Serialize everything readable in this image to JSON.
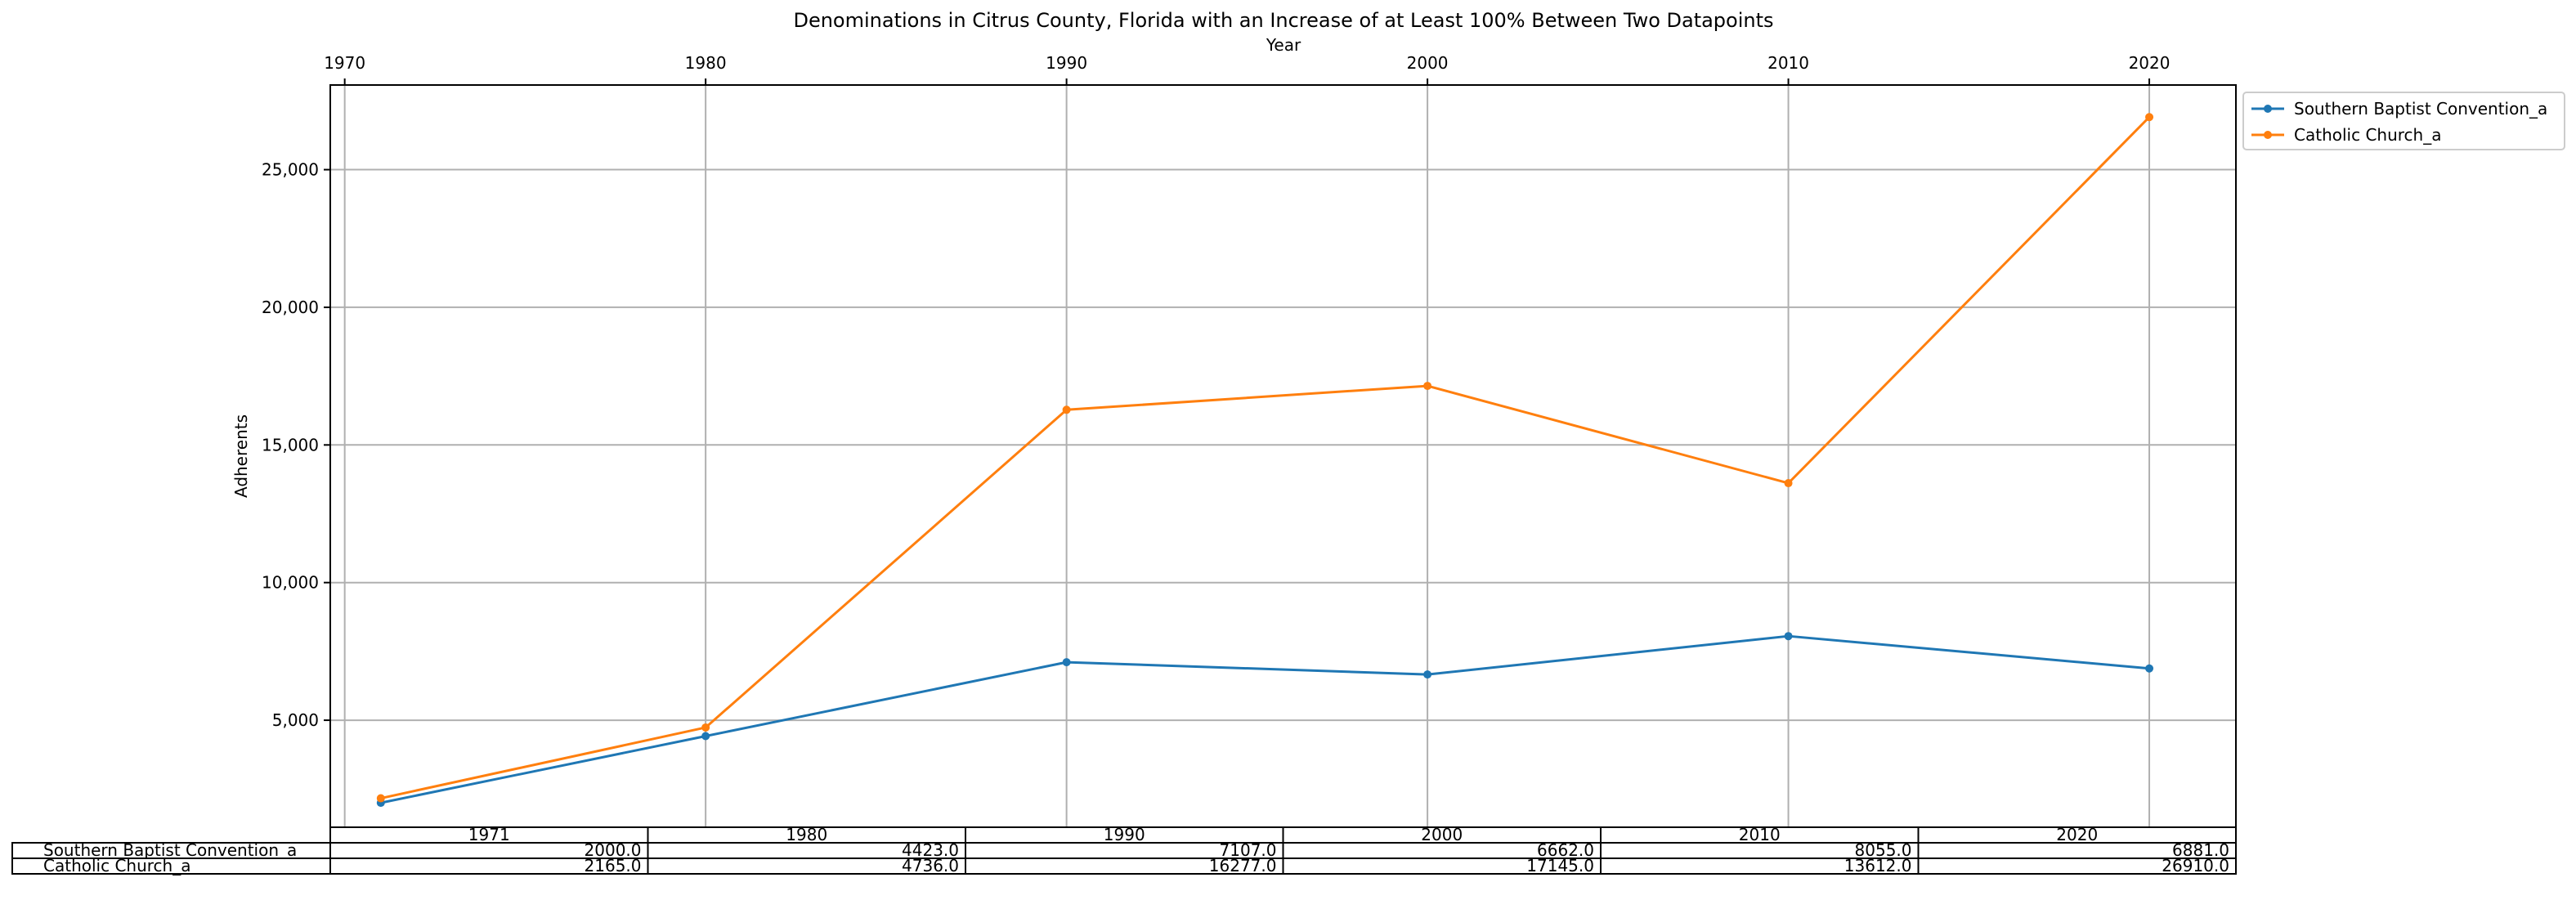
{
  "chart_data": {
    "type": "line",
    "title": "Denominations in Citrus County, Florida with an Increase of at Least 100% Between Two Datapoints",
    "xlabel": "Year",
    "ylabel": "Adherents",
    "x": [
      1971,
      1980,
      1990,
      2000,
      2010,
      2020
    ],
    "xlim": [
      1969.6,
      2022.4
    ],
    "ylim": [
      1112,
      28075
    ],
    "xticks": [
      1970,
      1980,
      1990,
      2000,
      2010,
      2020
    ],
    "xtick_labels": [
      "1970",
      "1980",
      "1990",
      "2000",
      "2010",
      "2020"
    ],
    "yticks": [
      5000,
      10000,
      15000,
      20000,
      25000
    ],
    "ytick_labels": [
      "5,000",
      "10,000",
      "15,000",
      "20,000",
      "25,000"
    ],
    "x_axis_position": "top",
    "grid": true,
    "legend_placement": "outside-top-right",
    "series": [
      {
        "name": "Southern Baptist Convention_a",
        "color": "#1f77b4",
        "marker": "circle",
        "values": [
          2000,
          4423,
          7107,
          6662,
          8055,
          6881
        ]
      },
      {
        "name": "Catholic Church_a",
        "color": "#ff7f0e",
        "marker": "circle",
        "values": [
          2165,
          4736,
          16277,
          17145,
          13612,
          26910
        ]
      }
    ],
    "table": {
      "col_labels": [
        "1971",
        "1980",
        "1990",
        "2000",
        "2010",
        "2020"
      ],
      "rows": [
        {
          "label": "Southern Baptist Convention_a",
          "cells": [
            "2000.0",
            "4423.0",
            "7107.0",
            "6662.0",
            "8055.0",
            "6881.0"
          ]
        },
        {
          "label": "Catholic Church_a",
          "cells": [
            "2165.0",
            "4736.0",
            "16277.0",
            "17145.0",
            "13612.0",
            "26910.0"
          ]
        }
      ]
    }
  }
}
